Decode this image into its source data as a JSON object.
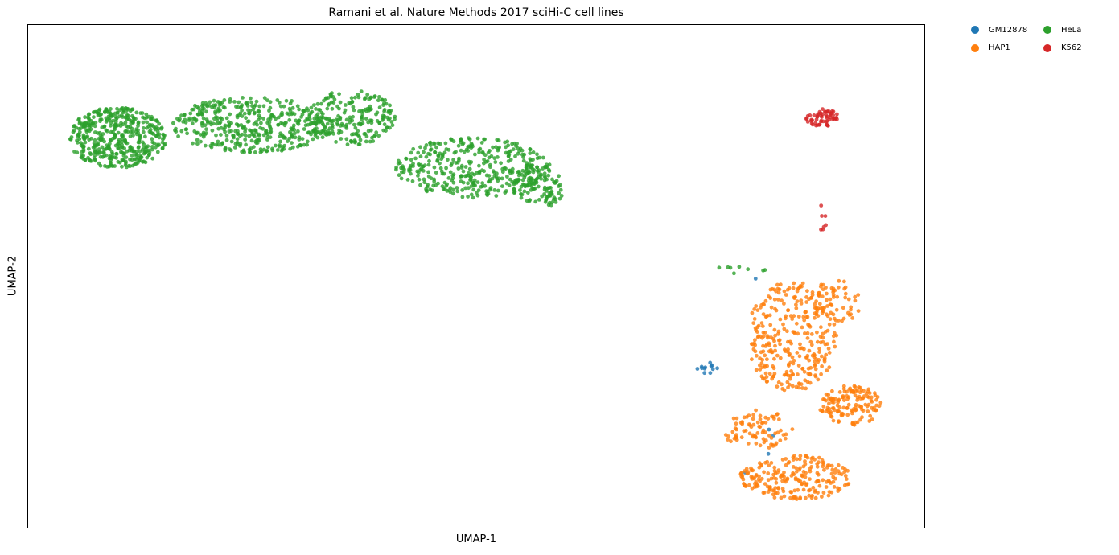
{
  "chart_data": {
    "type": "scatter",
    "title": "Ramani et al. Nature Methods 2017 sciHi-C cell lines",
    "xlabel": "UMAP-1",
    "ylabel": "UMAP-2",
    "xlim": [
      0,
      1000
    ],
    "ylim": [
      0,
      1000
    ],
    "ticks": "none",
    "grid": false,
    "legend": "outside-top-right, 2 columns",
    "series": [
      {
        "name": "GM12878",
        "color": "#1f77b4",
        "clusters": [
          {
            "cx": 760,
            "cy": 317,
            "rx": 14,
            "ry": 12,
            "n": 12
          },
          {
            "cx": 805,
            "cy": 160,
            "rx": 50,
            "ry": 60,
            "n": 4
          },
          {
            "cx": 812,
            "cy": 493,
            "rx": 6,
            "ry": 4,
            "n": 1
          }
        ]
      },
      {
        "name": "HAP1",
        "color": "#ff7f0e",
        "clusters": [
          {
            "cx": 852,
            "cy": 380,
            "rx": 50,
            "ry": 110,
            "n": 300
          },
          {
            "cx": 900,
            "cy": 450,
            "rx": 30,
            "ry": 45,
            "n": 60
          },
          {
            "cx": 918,
            "cy": 245,
            "rx": 36,
            "ry": 40,
            "n": 140
          },
          {
            "cx": 855,
            "cy": 100,
            "rx": 62,
            "ry": 45,
            "n": 220
          },
          {
            "cx": 815,
            "cy": 195,
            "rx": 40,
            "ry": 40,
            "n": 80
          }
        ]
      },
      {
        "name": "HeLa",
        "color": "#2ca02c",
        "clusters": [
          {
            "cx": 100,
            "cy": 775,
            "rx": 55,
            "ry": 60,
            "n": 450
          },
          {
            "cx": 250,
            "cy": 800,
            "rx": 90,
            "ry": 55,
            "n": 420
          },
          {
            "cx": 360,
            "cy": 815,
            "rx": 50,
            "ry": 55,
            "n": 200
          },
          {
            "cx": 495,
            "cy": 715,
            "rx": 85,
            "ry": 60,
            "n": 380
          },
          {
            "cx": 570,
            "cy": 680,
            "rx": 30,
            "ry": 45,
            "n": 100
          },
          {
            "cx": 790,
            "cy": 510,
            "rx": 40,
            "ry": 10,
            "n": 8
          }
        ]
      },
      {
        "name": "K562",
        "color": "#d62728",
        "clusters": [
          {
            "cx": 885,
            "cy": 815,
            "rx": 18,
            "ry": 18,
            "n": 60
          },
          {
            "cx": 886,
            "cy": 620,
            "rx": 4,
            "ry": 50,
            "n": 7
          }
        ]
      }
    ]
  }
}
